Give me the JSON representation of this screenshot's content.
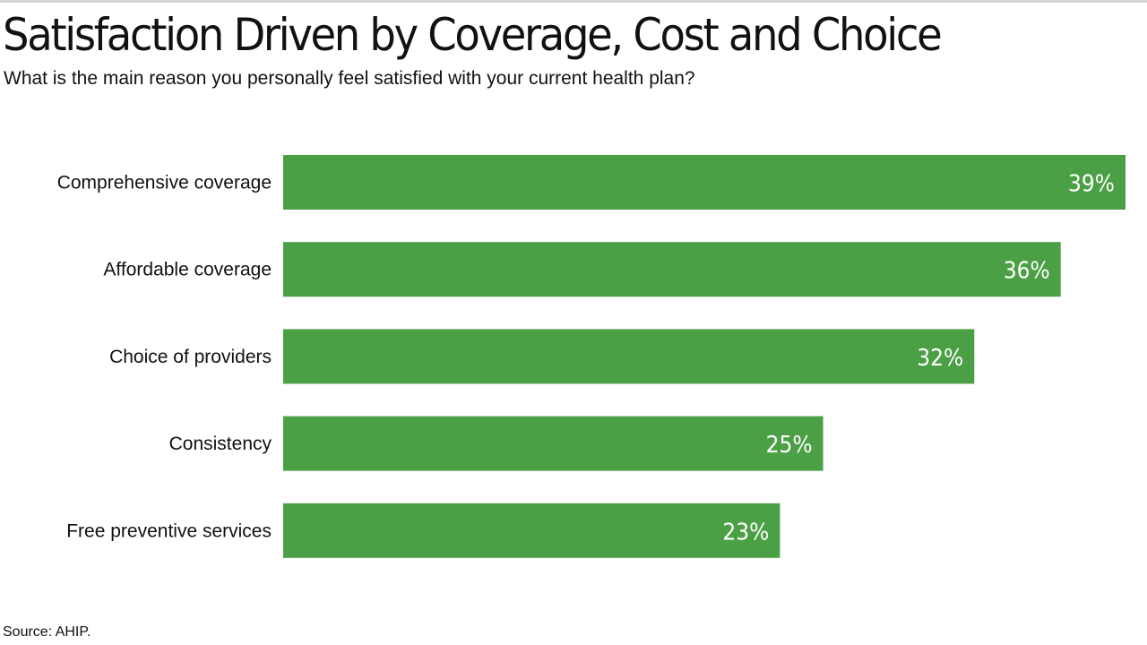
{
  "title": "Satisfaction Driven by Coverage, Cost and Choice",
  "subtitle": "What is the main reason you personally feel satisfied with your current health plan?",
  "source": "Source: AHIP.",
  "colors": {
    "bar": "#4ba046",
    "label": "#ffffff"
  },
  "chart_data": {
    "type": "bar",
    "orientation": "horizontal",
    "title": "Satisfaction Driven by Coverage, Cost and Choice",
    "subtitle": "What is the main reason you personally feel satisfied with your current health plan?",
    "categories": [
      "Comprehensive coverage",
      "Affordable coverage",
      "Choice of providers",
      "Consistency",
      "Free preventive services"
    ],
    "values": [
      39,
      36,
      32,
      25,
      23
    ],
    "value_labels": [
      "39%",
      "36%",
      "32%",
      "25%",
      "23%"
    ],
    "xlabel": "",
    "ylabel": "",
    "xlim": [
      0,
      39
    ],
    "grid": false,
    "legend": "none"
  }
}
